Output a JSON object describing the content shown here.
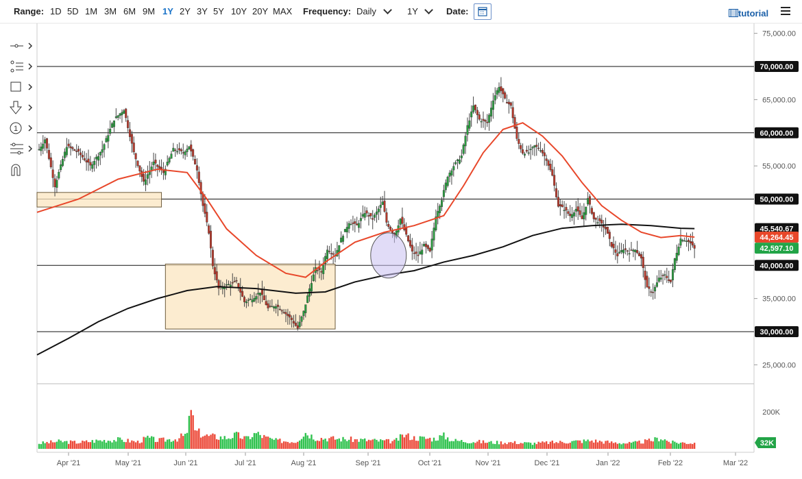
{
  "toolbar": {
    "range_label": "Range:",
    "ranges": [
      "1D",
      "5D",
      "1M",
      "3M",
      "6M",
      "9M",
      "1Y",
      "2Y",
      "3Y",
      "5Y",
      "10Y",
      "20Y",
      "MAX"
    ],
    "active_range": "1Y",
    "frequency_label": "Frequency:",
    "frequency_value": "Daily",
    "period_value": "1Y",
    "date_label": "Date:",
    "tutorial_label": "tutorial",
    "icons": {
      "calendar": "calendar-icon",
      "menu": "hamburger-menu-icon",
      "tutorial": "film-icon"
    }
  },
  "tools": [
    "crosshair-icon",
    "trendline-icon",
    "rectangle-icon",
    "arrow-down-icon",
    "numbered-marker-icon",
    "fibonacci-icon",
    "magnet-icon"
  ],
  "chart_data": {
    "type": "candlestick",
    "price_axis": {
      "ticks": [
        "75,000.00",
        "65,000.00",
        "55,000.00",
        "35,000.00",
        "25,000.00"
      ],
      "range": [
        22000,
        76000
      ]
    },
    "volume_axis": {
      "ticks": [
        "200K"
      ],
      "current_label": "32K"
    },
    "x_ticks": [
      "Apr '21",
      "May '21",
      "Jun '21",
      "Jul '21",
      "Aug '21",
      "Sep '21",
      "Oct '21",
      "Nov '21",
      "Dec '21",
      "Jan '22",
      "Feb '22",
      "Mar '22"
    ],
    "horizontal_levels": [
      {
        "value": 70000,
        "label": "70,000.00"
      },
      {
        "value": 60000,
        "label": "60,000.00"
      },
      {
        "value": 50000,
        "label": "50,000.00"
      },
      {
        "value": 40000,
        "label": "40,000.00"
      },
      {
        "value": 30000,
        "label": "30,000.00"
      }
    ],
    "price_tags": [
      {
        "label": "45,540.67",
        "value": 45540.67,
        "color": "#111111"
      },
      {
        "label": "44,264.45",
        "value": 44264.45,
        "color": "#e8472a"
      },
      {
        "label": "42,597.10",
        "value": 42597.1,
        "color": "#22a447"
      }
    ],
    "price_path": [
      [
        0,
        57500
      ],
      [
        3,
        59000
      ],
      [
        8,
        52000
      ],
      [
        14,
        58000
      ],
      [
        20,
        57000
      ],
      [
        26,
        55000
      ],
      [
        32,
        57500
      ],
      [
        38,
        62000
      ],
      [
        43,
        63500
      ],
      [
        48,
        57000
      ],
      [
        53,
        52500
      ],
      [
        58,
        55500
      ],
      [
        63,
        54000
      ],
      [
        68,
        57500
      ],
      [
        73,
        57000
      ],
      [
        76,
        58000
      ],
      [
        80,
        54500
      ],
      [
        83,
        49000
      ],
      [
        86,
        45000
      ],
      [
        88,
        40000
      ],
      [
        91,
        36500
      ],
      [
        95,
        37000
      ],
      [
        100,
        37500
      ],
      [
        104,
        34500
      ],
      [
        108,
        35000
      ],
      [
        112,
        36000
      ],
      [
        116,
        33500
      ],
      [
        120,
        34000
      ],
      [
        124,
        33000
      ],
      [
        128,
        31800
      ],
      [
        131,
        30500
      ],
      [
        134,
        33000
      ],
      [
        137,
        36500
      ],
      [
        140,
        39500
      ],
      [
        143,
        39000
      ],
      [
        146,
        42500
      ],
      [
        150,
        41500
      ],
      [
        153,
        44000
      ],
      [
        157,
        46500
      ],
      [
        161,
        46000
      ],
      [
        165,
        48000
      ],
      [
        169,
        47000
      ],
      [
        172,
        48500
      ],
      [
        174,
        49500
      ],
      [
        176,
        46500
      ],
      [
        180,
        44500
      ],
      [
        183,
        47000
      ],
      [
        186,
        44500
      ],
      [
        189,
        42000
      ],
      [
        192,
        41500
      ],
      [
        195,
        43000
      ],
      [
        198,
        42000
      ],
      [
        201,
        47500
      ],
      [
        204,
        50000
      ],
      [
        207,
        53500
      ],
      [
        210,
        55000
      ],
      [
        214,
        56500
      ],
      [
        217,
        61000
      ],
      [
        220,
        64000
      ],
      [
        223,
        62000
      ],
      [
        227,
        61500
      ],
      [
        230,
        65000
      ],
      [
        233,
        67000
      ],
      [
        236,
        65000
      ],
      [
        239,
        64000
      ],
      [
        242,
        59000
      ],
      [
        245,
        57000
      ],
      [
        248,
        57000
      ],
      [
        251,
        58000
      ],
      [
        254,
        57500
      ],
      [
        257,
        56000
      ],
      [
        260,
        53500
      ],
      [
        263,
        49000
      ],
      [
        266,
        48500
      ],
      [
        269,
        47500
      ],
      [
        272,
        48500
      ],
      [
        275,
        47000
      ],
      [
        278,
        50000
      ],
      [
        281,
        47000
      ],
      [
        284,
        46500
      ],
      [
        287,
        45500
      ],
      [
        290,
        43000
      ],
      [
        293,
        41500
      ],
      [
        296,
        42500
      ],
      [
        299,
        42000
      ],
      [
        302,
        42500
      ],
      [
        305,
        41000
      ],
      [
        308,
        36500
      ],
      [
        311,
        36000
      ],
      [
        314,
        38000
      ],
      [
        317,
        38500
      ],
      [
        320,
        37500
      ],
      [
        322,
        41000
      ],
      [
        325,
        44000
      ],
      [
        328,
        43800
      ],
      [
        330,
        43300
      ],
      [
        332,
        42500
      ]
    ],
    "sma_red": [
      [
        0,
        48000
      ],
      [
        20,
        50000
      ],
      [
        40,
        53000
      ],
      [
        60,
        54500
      ],
      [
        75,
        54000
      ],
      [
        85,
        50000
      ],
      [
        95,
        45500
      ],
      [
        110,
        41500
      ],
      [
        125,
        38800
      ],
      [
        135,
        38200
      ],
      [
        145,
        40500
      ],
      [
        160,
        43500
      ],
      [
        175,
        45000
      ],
      [
        190,
        46000
      ],
      [
        205,
        47500
      ],
      [
        215,
        52000
      ],
      [
        225,
        57000
      ],
      [
        235,
        60500
      ],
      [
        245,
        61500
      ],
      [
        255,
        59500
      ],
      [
        265,
        56500
      ],
      [
        275,
        52500
      ],
      [
        285,
        49000
      ],
      [
        295,
        46800
      ],
      [
        305,
        45000
      ],
      [
        315,
        44200
      ],
      [
        325,
        44500
      ],
      [
        332,
        44264
      ]
    ],
    "sma_black": [
      [
        0,
        26500
      ],
      [
        15,
        29000
      ],
      [
        30,
        31500
      ],
      [
        45,
        33500
      ],
      [
        60,
        35000
      ],
      [
        75,
        36200
      ],
      [
        90,
        36800
      ],
      [
        110,
        36500
      ],
      [
        130,
        35800
      ],
      [
        145,
        36000
      ],
      [
        160,
        37500
      ],
      [
        175,
        38500
      ],
      [
        190,
        39200
      ],
      [
        205,
        40500
      ],
      [
        220,
        41500
      ],
      [
        235,
        42800
      ],
      [
        250,
        44500
      ],
      [
        265,
        45600
      ],
      [
        280,
        46000
      ],
      [
        295,
        46200
      ],
      [
        310,
        46000
      ],
      [
        325,
        45600
      ],
      [
        332,
        45540
      ]
    ],
    "volume_path": [
      [
        0,
        30
      ],
      [
        10,
        40
      ],
      [
        20,
        35
      ],
      [
        30,
        45
      ],
      [
        40,
        50
      ],
      [
        50,
        38
      ],
      [
        55,
        60
      ],
      [
        60,
        45
      ],
      [
        70,
        55
      ],
      [
        75,
        80
      ],
      [
        77,
        210
      ],
      [
        79,
        95
      ],
      [
        85,
        70
      ],
      [
        95,
        60
      ],
      [
        100,
        75
      ],
      [
        105,
        55
      ],
      [
        110,
        85
      ],
      [
        115,
        60
      ],
      [
        120,
        45
      ],
      [
        130,
        40
      ],
      [
        135,
        90
      ],
      [
        140,
        60
      ],
      [
        150,
        55
      ],
      [
        160,
        50
      ],
      [
        170,
        45
      ],
      [
        180,
        40
      ],
      [
        185,
        75
      ],
      [
        190,
        60
      ],
      [
        200,
        55
      ],
      [
        205,
        70
      ],
      [
        210,
        45
      ],
      [
        220,
        40
      ],
      [
        230,
        35
      ],
      [
        240,
        35
      ],
      [
        250,
        30
      ],
      [
        260,
        35
      ],
      [
        270,
        40
      ],
      [
        280,
        45
      ],
      [
        290,
        35
      ],
      [
        300,
        30
      ],
      [
        310,
        45
      ],
      [
        315,
        60
      ],
      [
        320,
        35
      ],
      [
        332,
        32
      ]
    ],
    "boxes": [
      {
        "t0": 0,
        "t1": 62,
        "low": 48800,
        "high": 51000
      },
      {
        "t0": 64,
        "t1": 150,
        "low": 30400,
        "high": 40200
      }
    ],
    "circle": {
      "t": 177,
      "value": 41500
    }
  }
}
